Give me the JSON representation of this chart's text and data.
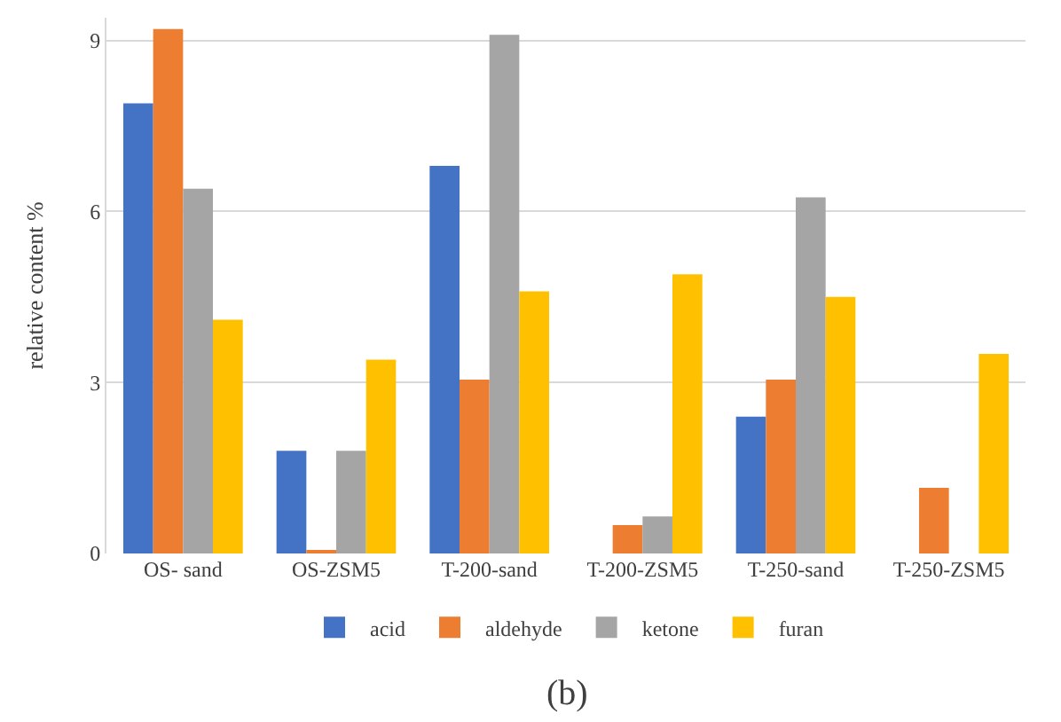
{
  "chart_data": {
    "type": "bar",
    "ylabel": "relative content %",
    "categories": [
      "OS- sand",
      "OS-ZSM5",
      "T-200-sand",
      "T-200-ZSM5",
      "T-250-sand",
      "T-250-ZSM5"
    ],
    "series": [
      {
        "name": "acid",
        "color": "#4472c4",
        "values": [
          7.9,
          1.8,
          6.8,
          0,
          2.4,
          0
        ]
      },
      {
        "name": "aldehyde",
        "color": "#ed7d31",
        "values": [
          9.2,
          0.05,
          3.05,
          0.5,
          3.05,
          1.15
        ]
      },
      {
        "name": "ketone",
        "color": "#a5a5a5",
        "values": [
          6.4,
          1.8,
          9.1,
          0.65,
          6.25,
          0
        ]
      },
      {
        "name": "furan",
        "color": "#ffc000",
        "values": [
          4.1,
          3.4,
          4.6,
          4.9,
          4.5,
          3.5
        ]
      }
    ],
    "ylim": [
      0,
      9.4
    ],
    "yticks": [
      0,
      3,
      6,
      9
    ],
    "grid": "y",
    "legend": "bottom",
    "annotations": [
      "(b)"
    ]
  }
}
